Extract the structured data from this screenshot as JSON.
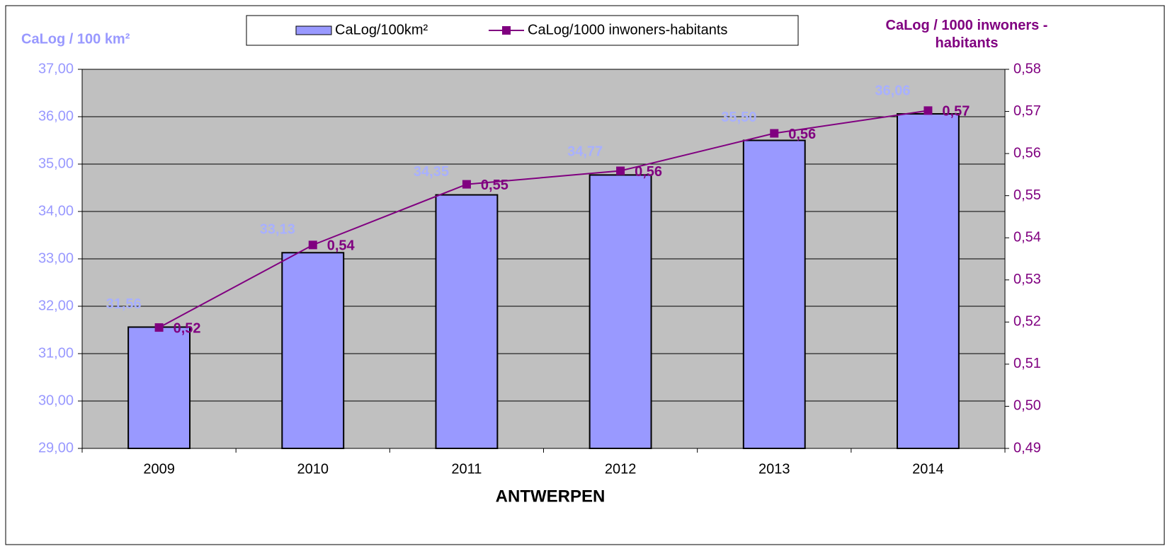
{
  "chart_data": {
    "type": "bar",
    "xlabel": "ANTWERPEN",
    "ylabel": "CaLog / 100 km²",
    "y2label": "CaLog / 1000 inwoners - habitants",
    "categories": [
      "2009",
      "2010",
      "2011",
      "2012",
      "2013",
      "2014"
    ],
    "series": [
      {
        "name": "CaLog/100km²",
        "type": "bar",
        "color": "#9999ff",
        "label_color": "#a8b0ff",
        "values": [
          31.56,
          33.13,
          34.35,
          34.77,
          35.5,
          36.06
        ],
        "value_labels": [
          "31,56",
          "33,13",
          "34,35",
          "34,77",
          "35,50",
          "36,06"
        ]
      },
      {
        "name": "CaLog/1000 inwoners-habitants",
        "type": "line",
        "axis": "y2",
        "color": "#800080",
        "values": [
          0.5187,
          0.5383,
          0.5527,
          0.5559,
          0.5648,
          0.5702
        ],
        "value_labels": [
          "0,52",
          "0,54",
          "0,55",
          "0,56",
          "0,56",
          "0,57"
        ]
      }
    ],
    "ylim": [
      29,
      37
    ],
    "yticks": [
      {
        "value": 29,
        "label": "29,00"
      },
      {
        "value": 30,
        "label": "30,00"
      },
      {
        "value": 31,
        "label": "31,00"
      },
      {
        "value": 32,
        "label": "32,00"
      },
      {
        "value": 33,
        "label": "33,00"
      },
      {
        "value": 34,
        "label": "34,00"
      },
      {
        "value": 35,
        "label": "35,00"
      },
      {
        "value": 36,
        "label": "36,00"
      },
      {
        "value": 37,
        "label": "37,00"
      }
    ],
    "y2lim": [
      0.49,
      0.58
    ],
    "y2ticks": [
      {
        "value": 0.49,
        "label": "0,49"
      },
      {
        "value": 0.5,
        "label": "0,50"
      },
      {
        "value": 0.51,
        "label": "0,51"
      },
      {
        "value": 0.52,
        "label": "0,52"
      },
      {
        "value": 0.53,
        "label": "0,53"
      },
      {
        "value": 0.54,
        "label": "0,54"
      },
      {
        "value": 0.55,
        "label": "0,55"
      },
      {
        "value": 0.56,
        "label": "0,56"
      },
      {
        "value": 0.57,
        "label": "0,57"
      },
      {
        "value": 0.58,
        "label": "0,58"
      }
    ],
    "grid": true,
    "legend": "top"
  }
}
